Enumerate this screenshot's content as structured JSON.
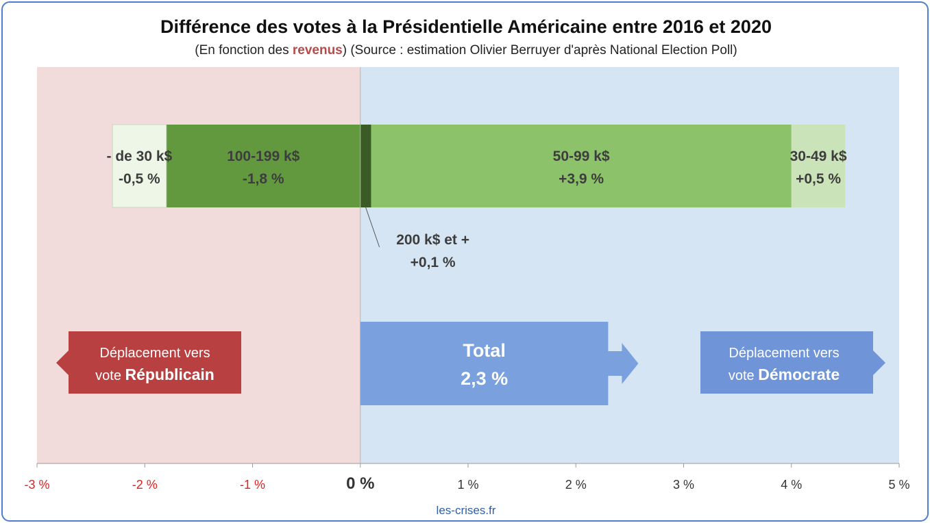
{
  "title": "Différence des votes à la Présidentielle Américaine entre 2016 et 2020",
  "subtitle": {
    "before": "(En fonction des ",
    "highlight": "revenus",
    "after": ") (Source : estimation Olivier Berruyer d'après National Election Poll)"
  },
  "chart_data": {
    "type": "bar",
    "orientation": "horizontal-stacked",
    "xlim": [
      -3,
      5
    ],
    "ticks": [
      {
        "value": -3,
        "label": "-3 %"
      },
      {
        "value": -2,
        "label": "-2 %"
      },
      {
        "value": -1,
        "label": "-1 %"
      },
      {
        "value": 0,
        "label": "0 %"
      },
      {
        "value": 1,
        "label": "1 %"
      },
      {
        "value": 2,
        "label": "2 %"
      },
      {
        "value": 3,
        "label": "3 %"
      },
      {
        "value": 4,
        "label": "4 %"
      },
      {
        "value": 5,
        "label": "5 %"
      }
    ],
    "segments": [
      {
        "category": "- de 30 k$",
        "value": -0.5,
        "value_label": "-0,5 %",
        "color": "#eef6e8"
      },
      {
        "category": "100-199 k$",
        "value": -1.8,
        "value_label": "-1,8 %",
        "color": "#62993e"
      },
      {
        "category": "200 k$ et +",
        "value": 0.1,
        "value_label": "+0,1 %",
        "color": "#3b5b26"
      },
      {
        "category": "50-99 k$",
        "value": 3.9,
        "value_label": "+3,9 %",
        "color": "#8cc26a"
      },
      {
        "category": "30-49 k$",
        "value": 0.5,
        "value_label": "+0,5 %",
        "color": "#cbe3b8"
      }
    ],
    "total": {
      "label": "Total",
      "value": 2.3,
      "value_label": "2,3 %"
    }
  },
  "callouts": {
    "republican": {
      "line1": "Déplacement vers",
      "prefix": "vote ",
      "bold": "Républicain"
    },
    "democrat": {
      "line1": "Déplacement vers",
      "prefix": "vote ",
      "bold": "Démocrate"
    }
  },
  "colors": {
    "republican_bg": "#f2dcdb",
    "democrat_bg": "#d6e5f4",
    "republican_box": "#b94040",
    "democrat_box": "#6f94d8",
    "total_box": "#7aa0dd",
    "negative_tick": "#e02020",
    "positive_tick": "#333333"
  },
  "source": "les-crises.fr"
}
